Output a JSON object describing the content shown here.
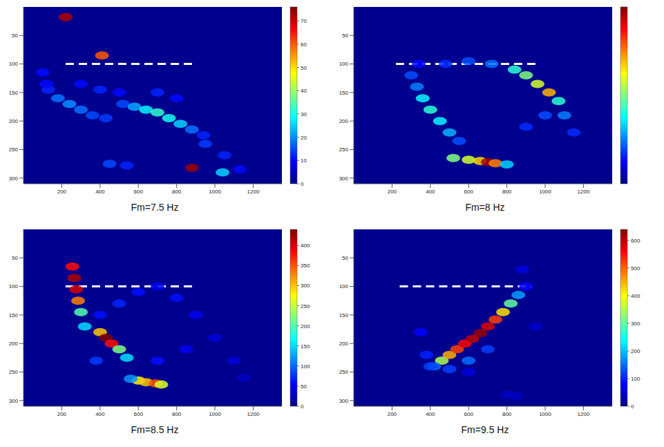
{
  "chart_data": [
    {
      "type": "heatmap",
      "title": "Fm=7.5 Hz",
      "xlim": [
        0,
        1350
      ],
      "xticks": [
        200,
        400,
        600,
        800,
        1000,
        1200
      ],
      "ylim": [
        0,
        310
      ],
      "yticks": [
        50,
        100,
        150,
        200,
        250,
        300
      ],
      "cells": [
        [
          220,
          18,
          72
        ],
        [
          410,
          85,
          60
        ],
        [
          880,
          282,
          74
        ],
        [
          1040,
          290,
          25
        ],
        [
          450,
          275,
          15
        ],
        [
          540,
          278,
          12
        ],
        [
          130,
          145,
          12
        ],
        [
          180,
          160,
          18
        ],
        [
          240,
          170,
          20
        ],
        [
          300,
          180,
          18
        ],
        [
          360,
          190,
          15
        ],
        [
          430,
          195,
          14
        ],
        [
          520,
          170,
          15
        ],
        [
          580,
          175,
          22
        ],
        [
          640,
          180,
          28
        ],
        [
          700,
          185,
          32
        ],
        [
          760,
          195,
          30
        ],
        [
          820,
          205,
          25
        ],
        [
          880,
          215,
          18
        ],
        [
          940,
          225,
          12
        ],
        [
          300,
          135,
          10
        ],
        [
          400,
          145,
          12
        ],
        [
          500,
          150,
          10
        ],
        [
          700,
          150,
          12
        ],
        [
          800,
          160,
          10
        ],
        [
          950,
          240,
          14
        ],
        [
          1050,
          260,
          12
        ],
        [
          1130,
          285,
          10
        ],
        [
          100,
          115,
          10
        ],
        [
          120,
          135,
          10
        ]
      ],
      "colorbar_lim": [
        0,
        76
      ],
      "colorbar_ticks": [
        0,
        10,
        20,
        30,
        40,
        50,
        60,
        70
      ],
      "reference_line": {
        "y": 100,
        "x": [
          220,
          900
        ],
        "color": "#ffffff",
        "line_style": "dashed"
      }
    },
    {
      "type": "heatmap",
      "title": "Fm=8 Hz",
      "xlim": [
        0,
        1350
      ],
      "xticks": [
        200,
        400,
        600,
        800,
        1000,
        1200
      ],
      "ylim": [
        0,
        310
      ],
      "yticks": [
        50,
        100,
        150,
        200,
        250,
        300
      ],
      "cells": [
        [
          330,
          140,
          15
        ],
        [
          360,
          160,
          22
        ],
        [
          400,
          180,
          25
        ],
        [
          450,
          200,
          22
        ],
        [
          500,
          220,
          18
        ],
        [
          550,
          235,
          12
        ],
        [
          520,
          265,
          30
        ],
        [
          600,
          268,
          35
        ],
        [
          660,
          270,
          40
        ],
        [
          700,
          272,
          58
        ],
        [
          740,
          274,
          45
        ],
        [
          800,
          276,
          20
        ],
        [
          480,
          100,
          10
        ],
        [
          600,
          95,
          12
        ],
        [
          720,
          100,
          14
        ],
        [
          840,
          110,
          25
        ],
        [
          900,
          120,
          30
        ],
        [
          960,
          135,
          35
        ],
        [
          1020,
          150,
          42
        ],
        [
          1070,
          165,
          25
        ],
        [
          1100,
          190,
          15
        ],
        [
          1150,
          220,
          10
        ],
        [
          1000,
          190,
          12
        ],
        [
          900,
          210,
          10
        ],
        [
          300,
          120,
          12
        ],
        [
          340,
          100,
          8
        ]
      ],
      "colorbar_lim": [
        0,
        60
      ],
      "colorbar_ticks": [],
      "reference_line": {
        "y": 100,
        "x": [
          220,
          950
        ],
        "color": "#ffffff",
        "line_style": "dashed"
      }
    },
    {
      "type": "heatmap",
      "title": "Fm=8.5 Hz",
      "xlim": [
        0,
        1350
      ],
      "xticks": [
        200,
        400,
        600,
        800,
        1000,
        1200
      ],
      "ylim": [
        0,
        310
      ],
      "yticks": [
        50,
        100,
        150,
        200,
        250,
        300
      ],
      "cells": [
        [
          255,
          65,
          380
        ],
        [
          265,
          85,
          420
        ],
        [
          275,
          105,
          400
        ],
        [
          285,
          125,
          330
        ],
        [
          300,
          145,
          200
        ],
        [
          320,
          170,
          150
        ],
        [
          400,
          180,
          300
        ],
        [
          430,
          190,
          440
        ],
        [
          460,
          200,
          380
        ],
        [
          500,
          210,
          220
        ],
        [
          540,
          225,
          150
        ],
        [
          600,
          265,
          280
        ],
        [
          640,
          268,
          300
        ],
        [
          690,
          270,
          350
        ],
        [
          720,
          272,
          260
        ],
        [
          560,
          262,
          120
        ],
        [
          400,
          150,
          60
        ],
        [
          500,
          130,
          70
        ],
        [
          600,
          110,
          60
        ],
        [
          700,
          100,
          50
        ],
        [
          800,
          120,
          60
        ],
        [
          900,
          150,
          50
        ],
        [
          1000,
          190,
          40
        ],
        [
          1100,
          230,
          40
        ],
        [
          700,
          230,
          60
        ],
        [
          850,
          210,
          50
        ],
        [
          380,
          230,
          80
        ],
        [
          1150,
          260,
          30
        ]
      ],
      "colorbar_lim": [
        0,
        440
      ],
      "colorbar_ticks": [
        0,
        50,
        100,
        150,
        200,
        250,
        300,
        350,
        400
      ],
      "reference_line": {
        "y": 100,
        "x": [
          220,
          900
        ],
        "color": "#ffffff",
        "line_style": "dashed"
      }
    },
    {
      "type": "heatmap",
      "title": "Fm=9.5 Hz",
      "xlim": [
        0,
        1350
      ],
      "xticks": [
        200,
        400,
        600,
        800,
        1000,
        1200
      ],
      "ylim": [
        0,
        310
      ],
      "yticks": [
        50,
        100,
        150,
        200,
        250,
        300
      ],
      "cells": [
        [
          460,
          230,
          350
        ],
        [
          500,
          220,
          450
        ],
        [
          540,
          210,
          520
        ],
        [
          580,
          200,
          560
        ],
        [
          620,
          192,
          600
        ],
        [
          660,
          182,
          620
        ],
        [
          700,
          170,
          580
        ],
        [
          740,
          158,
          520
        ],
        [
          780,
          145,
          420
        ],
        [
          820,
          130,
          300
        ],
        [
          860,
          115,
          180
        ],
        [
          420,
          240,
          150
        ],
        [
          500,
          245,
          120
        ],
        [
          600,
          230,
          150
        ],
        [
          700,
          210,
          120
        ],
        [
          350,
          180,
          80
        ],
        [
          380,
          220,
          100
        ],
        [
          400,
          240,
          120
        ],
        [
          900,
          100,
          80
        ],
        [
          880,
          70,
          60
        ],
        [
          950,
          170,
          50
        ],
        [
          800,
          290,
          40
        ],
        [
          850,
          292,
          40
        ],
        [
          600,
          250,
          60
        ]
      ],
      "colorbar_lim": [
        0,
        640
      ],
      "colorbar_ticks": [
        0,
        100,
        200,
        300,
        400,
        500,
        600
      ],
      "reference_line": {
        "y": 100,
        "x": [
          240,
          930
        ],
        "color": "#ffffff",
        "line_style": "dashed"
      }
    }
  ]
}
